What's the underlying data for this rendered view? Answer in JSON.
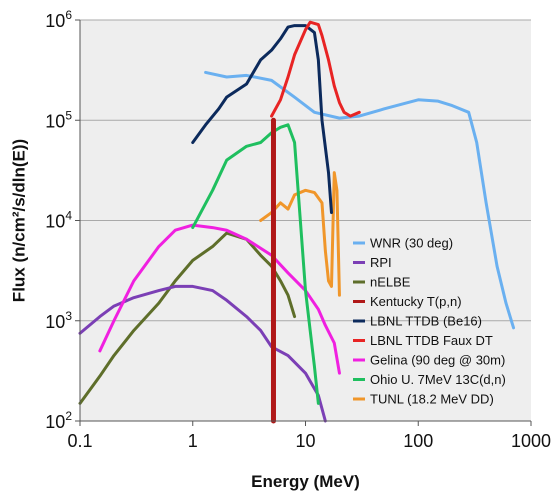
{
  "chart_data": {
    "type": "line",
    "title": "",
    "xlabel": "Energy (MeV)",
    "ylabel": "Flux (n/cm²/s/dln(E))",
    "xscale": "log",
    "yscale": "log",
    "xlim": [
      0.1,
      1000
    ],
    "ylim": [
      100,
      1000000
    ],
    "x_tick_labels": [
      "0.1",
      "1",
      "10",
      "100",
      "1000"
    ],
    "y_tick_labels": [
      {
        "base": "10",
        "exp": "2"
      },
      {
        "base": "10",
        "exp": "3"
      },
      {
        "base": "10",
        "exp": "4"
      },
      {
        "base": "10",
        "exp": "5"
      },
      {
        "base": "10",
        "exp": "6"
      }
    ],
    "grid": "horizontal",
    "plot_background": "#eeeeee",
    "legend_position": "lower-right (inside plot)",
    "series": [
      {
        "name": "WNR (30 deg)",
        "color": "#6ab0f0",
        "points": [
          [
            1.3,
            300000
          ],
          [
            2,
            270000
          ],
          [
            3,
            280000
          ],
          [
            5,
            250000
          ],
          [
            8,
            170000
          ],
          [
            12,
            120000
          ],
          [
            20,
            105000
          ],
          [
            30,
            110000
          ],
          [
            50,
            130000
          ],
          [
            100,
            160000
          ],
          [
            150,
            155000
          ],
          [
            200,
            140000
          ],
          [
            280,
            120000
          ],
          [
            330,
            60000
          ],
          [
            400,
            15000
          ],
          [
            500,
            3500
          ],
          [
            600,
            1500
          ],
          [
            700,
            850
          ]
        ]
      },
      {
        "name": "RPI",
        "color": "#7b3fb5",
        "points": [
          [
            0.1,
            750
          ],
          [
            0.15,
            1100
          ],
          [
            0.2,
            1400
          ],
          [
            0.3,
            1700
          ],
          [
            0.5,
            2000
          ],
          [
            0.7,
            2200
          ],
          [
            1,
            2200
          ],
          [
            1.5,
            2000
          ],
          [
            2,
            1600
          ],
          [
            3,
            1100
          ],
          [
            4,
            800
          ],
          [
            5,
            550
          ],
          [
            7,
            450
          ],
          [
            10,
            300
          ],
          [
            13,
            180
          ],
          [
            15,
            100
          ]
        ]
      },
      {
        "name": "nELBE",
        "color": "#5e6e2a",
        "points": [
          [
            0.1,
            150
          ],
          [
            0.15,
            280
          ],
          [
            0.2,
            450
          ],
          [
            0.3,
            800
          ],
          [
            0.5,
            1500
          ],
          [
            0.7,
            2500
          ],
          [
            1,
            4000
          ],
          [
            1.5,
            5500
          ],
          [
            2,
            7500
          ],
          [
            3,
            6500
          ],
          [
            4,
            4500
          ],
          [
            5,
            3500
          ],
          [
            6,
            2500
          ],
          [
            7,
            1800
          ],
          [
            8,
            1100
          ]
        ]
      },
      {
        "name": "Kentucky T(p,n)",
        "color": "#b01818",
        "points": [
          [
            5.2,
            100
          ],
          [
            5.2,
            100000
          ]
        ]
      },
      {
        "name": "LBNL TTDB (Be16)",
        "color": "#0c2a5c",
        "points": [
          [
            1,
            60000
          ],
          [
            1.3,
            90000
          ],
          [
            1.7,
            130000
          ],
          [
            2,
            170000
          ],
          [
            3,
            230000
          ],
          [
            4,
            400000
          ],
          [
            5,
            500000
          ],
          [
            6,
            650000
          ],
          [
            7,
            850000
          ],
          [
            8,
            880000
          ],
          [
            10,
            880000
          ],
          [
            12,
            750000
          ],
          [
            13,
            400000
          ],
          [
            14,
            100000
          ],
          [
            16,
            30000
          ],
          [
            17,
            12000
          ]
        ]
      },
      {
        "name": "LBNL TTDB Faux DT",
        "color": "#e82424",
        "points": [
          [
            5,
            110000
          ],
          [
            6,
            160000
          ],
          [
            7,
            270000
          ],
          [
            8,
            450000
          ],
          [
            10,
            800000
          ],
          [
            11,
            950000
          ],
          [
            13,
            900000
          ],
          [
            14,
            700000
          ],
          [
            16,
            400000
          ],
          [
            18,
            220000
          ],
          [
            20,
            150000
          ],
          [
            22,
            120000
          ],
          [
            25,
            110000
          ],
          [
            30,
            120000
          ]
        ]
      },
      {
        "name": "Gelina (90 deg @ 30m)",
        "color": "#f020e0",
        "points": [
          [
            0.15,
            500
          ],
          [
            0.2,
            1000
          ],
          [
            0.3,
            2500
          ],
          [
            0.5,
            5500
          ],
          [
            0.7,
            8000
          ],
          [
            1,
            9000
          ],
          [
            1.5,
            8500
          ],
          [
            2,
            8000
          ],
          [
            3,
            6500
          ],
          [
            5,
            4500
          ],
          [
            7,
            3000
          ],
          [
            10,
            2000
          ],
          [
            13,
            1300
          ],
          [
            15,
            900
          ],
          [
            18,
            600
          ],
          [
            20,
            300
          ]
        ]
      },
      {
        "name": "Ohio U. 7MeV 13C(d,n)",
        "color": "#1fbf5f",
        "points": [
          [
            1,
            8500
          ],
          [
            1.5,
            20000
          ],
          [
            2,
            40000
          ],
          [
            3,
            55000
          ],
          [
            4,
            60000
          ],
          [
            5,
            75000
          ],
          [
            6,
            85000
          ],
          [
            7,
            90000
          ],
          [
            8,
            60000
          ],
          [
            9,
            10000
          ],
          [
            10,
            2000
          ],
          [
            11,
            800
          ],
          [
            12,
            350
          ],
          [
            13,
            150
          ]
        ]
      },
      {
        "name": "TUNL (18.2 MeV DD)",
        "color": "#f0962a",
        "points": [
          [
            4,
            10000
          ],
          [
            5,
            12000
          ],
          [
            6,
            15000
          ],
          [
            7,
            13000
          ],
          [
            8,
            18000
          ],
          [
            10,
            20000
          ],
          [
            12,
            19000
          ],
          [
            14,
            15000
          ],
          [
            15,
            5000
          ],
          [
            16,
            2500
          ],
          [
            17,
            2200
          ],
          [
            18,
            30000
          ],
          [
            19,
            20000
          ],
          [
            20,
            1800
          ]
        ]
      }
    ]
  }
}
